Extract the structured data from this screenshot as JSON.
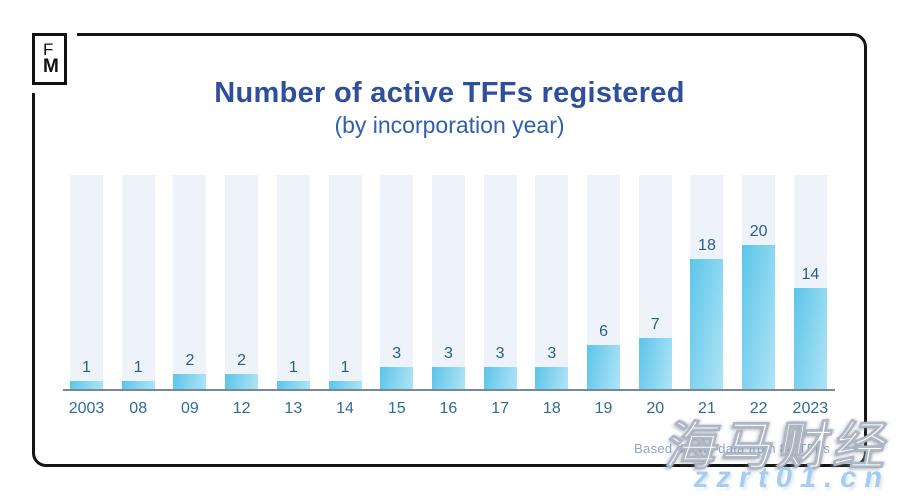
{
  "logo": {
    "top": "F",
    "bottom": "M"
  },
  "header": {
    "title": "Number of active TFFs registered",
    "subtitle": "(by incorporation year)"
  },
  "chart_data": {
    "type": "bar",
    "title": "Number of active TFFs registered",
    "subtitle": "(by incorporation year)",
    "categories": [
      "2003",
      "08",
      "09",
      "12",
      "13",
      "14",
      "15",
      "16",
      "17",
      "18",
      "19",
      "20",
      "21",
      "22",
      "2023"
    ],
    "values": [
      1,
      1,
      2,
      2,
      1,
      1,
      3,
      3,
      3,
      3,
      6,
      7,
      18,
      20,
      14
    ],
    "xlabel": "",
    "ylabel": "",
    "ylim": [
      0,
      30
    ],
    "grid": false,
    "legend": false,
    "data_labels": true,
    "background_columns": true
  },
  "footer": {
    "note": "Based on the data from 84 TFFs"
  },
  "watermark": {
    "text_cn": "海马财经",
    "url": "zzrt01.cn"
  },
  "colors": {
    "title": "#2e4f9e",
    "subtitle": "#3060ac",
    "bar_gradient_start": "#5cc5e8",
    "bar_gradient_end": "#abe2f6",
    "column_background": "#edf3f8",
    "axis": "#74899b",
    "value_label": "#2b5e84",
    "year_label": "#2f6c93",
    "footnote": "#8da4cf",
    "url_watermark": "#a3cdf2",
    "frame": "#151515"
  }
}
